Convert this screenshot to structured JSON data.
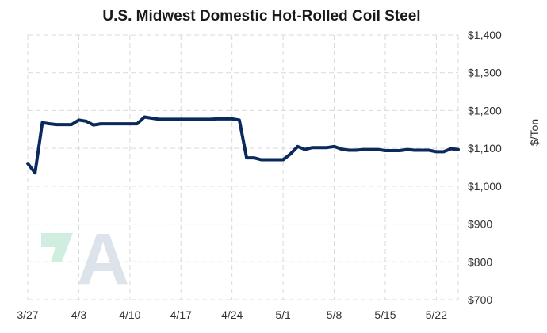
{
  "chart_data": {
    "type": "line",
    "title": "U.S. Midwest Domestic Hot-Rolled Coil Steel",
    "ylabel": "$/Ton",
    "xlabel": "",
    "ylim": [
      700,
      1400
    ],
    "xlim": [
      "3/27",
      "5/25"
    ],
    "yticks": [
      700,
      800,
      900,
      1000,
      1100,
      1200,
      1300,
      1400
    ],
    "ytick_labels": [
      "$700",
      "$800",
      "$900",
      "$1,000",
      "$1,100",
      "$1,200",
      "$1,300",
      "$1,400"
    ],
    "xticks": [
      "3/27",
      "4/3",
      "4/10",
      "4/17",
      "4/24",
      "5/1",
      "5/8",
      "5/15",
      "5/22"
    ],
    "grid": true,
    "y_axis_position": "right",
    "line_color": "#0a2a5e",
    "series": [
      {
        "points": [
          [
            "3/27",
            1060
          ],
          [
            "3/28",
            1035
          ],
          [
            "3/29",
            1168
          ],
          [
            "3/30",
            1165
          ],
          [
            "3/31",
            1163
          ],
          [
            "4/1",
            1163
          ],
          [
            "4/2",
            1163
          ],
          [
            "4/3",
            1175
          ],
          [
            "4/4",
            1172
          ],
          [
            "4/5",
            1162
          ],
          [
            "4/6",
            1165
          ],
          [
            "4/7",
            1165
          ],
          [
            "4/8",
            1165
          ],
          [
            "4/9",
            1165
          ],
          [
            "4/10",
            1165
          ],
          [
            "4/11",
            1165
          ],
          [
            "4/12",
            1183
          ],
          [
            "4/13",
            1180
          ],
          [
            "4/14",
            1177
          ],
          [
            "4/15",
            1177
          ],
          [
            "4/16",
            1177
          ],
          [
            "4/17",
            1177
          ],
          [
            "4/18",
            1177
          ],
          [
            "4/19",
            1177
          ],
          [
            "4/20",
            1177
          ],
          [
            "4/21",
            1177
          ],
          [
            "4/22",
            1178
          ],
          [
            "4/23",
            1178
          ],
          [
            "4/24",
            1178
          ],
          [
            "4/25",
            1175
          ],
          [
            "4/26",
            1075
          ],
          [
            "4/27",
            1075
          ],
          [
            "4/28",
            1070
          ],
          [
            "4/29",
            1070
          ],
          [
            "4/30",
            1070
          ],
          [
            "5/1",
            1070
          ],
          [
            "5/2",
            1085
          ],
          [
            "5/3",
            1105
          ],
          [
            "5/4",
            1097
          ],
          [
            "5/5",
            1102
          ],
          [
            "5/6",
            1102
          ],
          [
            "5/7",
            1102
          ],
          [
            "5/8",
            1105
          ],
          [
            "5/9",
            1098
          ],
          [
            "5/10",
            1095
          ],
          [
            "5/11",
            1095
          ],
          [
            "5/12",
            1097
          ],
          [
            "5/13",
            1097
          ],
          [
            "5/14",
            1097
          ],
          [
            "5/15",
            1094
          ],
          [
            "5/16",
            1094
          ],
          [
            "5/17",
            1094
          ],
          [
            "5/18",
            1097
          ],
          [
            "5/19",
            1095
          ],
          [
            "5/20",
            1095
          ],
          [
            "5/21",
            1095
          ],
          [
            "5/22",
            1091
          ],
          [
            "5/23",
            1091
          ],
          [
            "5/24",
            1099
          ],
          [
            "5/25",
            1097
          ]
        ]
      }
    ],
    "watermark": {
      "text": "A",
      "colors": [
        "#cfeee0",
        "#dde3ea"
      ]
    }
  }
}
